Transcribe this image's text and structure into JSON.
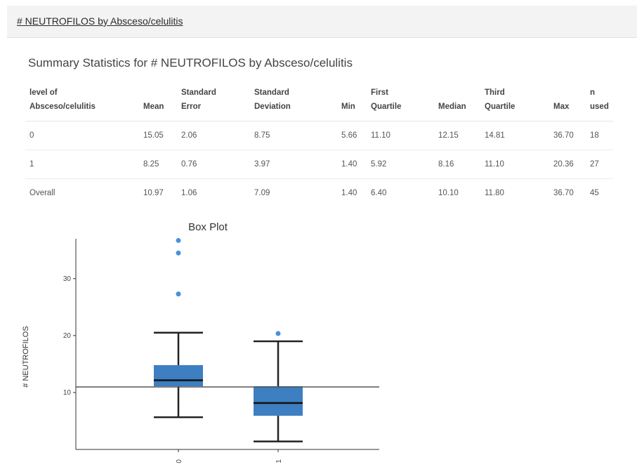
{
  "header": {
    "title": "# NEUTROFILOS by Absceso/celulitis"
  },
  "summary": {
    "title": "Summary Statistics for # NEUTROFILOS by Absceso/celulitis",
    "columns": [
      {
        "line1": "level of",
        "line2": "Absceso/celulitis"
      },
      {
        "line1": "",
        "line2": "Mean"
      },
      {
        "line1": "Standard",
        "line2": "Error"
      },
      {
        "line1": "Standard",
        "line2": "Deviation"
      },
      {
        "line1": "",
        "line2": "Min"
      },
      {
        "line1": "First",
        "line2": "Quartile"
      },
      {
        "line1": "",
        "line2": "Median"
      },
      {
        "line1": "Third",
        "line2": "Quartile"
      },
      {
        "line1": "",
        "line2": "Max"
      },
      {
        "line1": "n",
        "line2": "used"
      }
    ],
    "rows": [
      [
        "0",
        "15.05",
        "2.06",
        "8.75",
        "5.66",
        "11.10",
        "12.15",
        "14.81",
        "36.70",
        "18"
      ],
      [
        "1",
        "8.25",
        "0.76",
        "3.97",
        "1.40",
        "5.92",
        "8.16",
        "11.10",
        "20.36",
        "27"
      ],
      [
        "Overall",
        "10.97",
        "1.06",
        "7.09",
        "1.40",
        "6.40",
        "10.10",
        "11.80",
        "36.70",
        "45"
      ]
    ]
  },
  "chart_data": {
    "type": "box",
    "title": "Box Plot",
    "ylabel": "# NEUTROFILOS",
    "xlabel": "",
    "categories": [
      "0",
      "1"
    ],
    "ylim": [
      0,
      37
    ],
    "yticks": [
      10,
      20,
      30
    ],
    "reference_line": 10.97,
    "boxes": [
      {
        "category": "0",
        "whisker_low": 5.66,
        "q1": 11.1,
        "median": 12.15,
        "q3": 14.81,
        "whisker_high": 20.5,
        "outliers": [
          27.3,
          34.5,
          36.7
        ]
      },
      {
        "category": "1",
        "whisker_low": 1.4,
        "q1": 5.92,
        "median": 8.16,
        "q3": 11.1,
        "whisker_high": 19.0,
        "outliers": [
          20.36
        ]
      }
    ],
    "box_color": "#3d7fc1",
    "outlier_color": "#4a90d9"
  }
}
